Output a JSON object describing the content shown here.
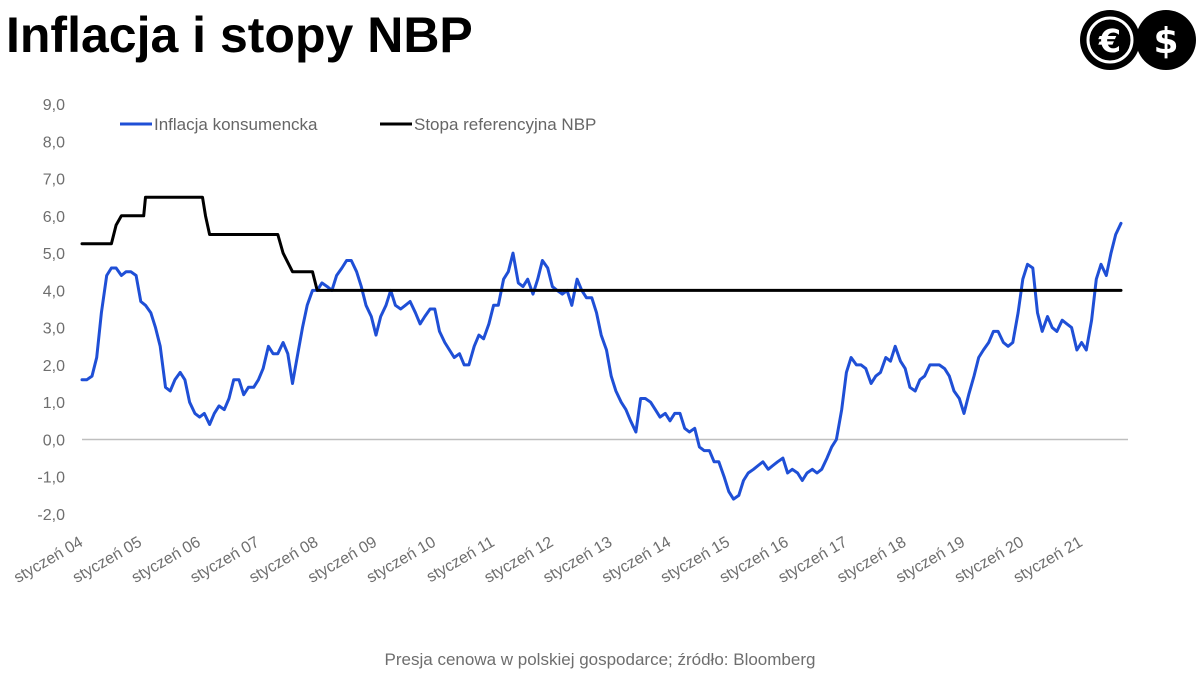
{
  "header": {
    "title": "Inflacja i stopy NBP",
    "logo": {
      "icon": "euro-dollar-logo-icon",
      "glyph_left": "€",
      "glyph_right": "$"
    }
  },
  "footer": {
    "source": "Presja cenowa w polskiej gospodarce; źródło: Bloomberg"
  },
  "colors": {
    "inflation": "#1f4fd6",
    "rate": "#000000",
    "axis": "#bfbfbf",
    "text": "#6e6e6e"
  },
  "chart_data": {
    "type": "line",
    "title": "Inflacja i stopy NBP",
    "xlabel": "",
    "ylabel": "",
    "ylim": [
      -2.0,
      9.0
    ],
    "ytick_labels": [
      "-2,0",
      "-1,0",
      "0,0",
      "1,0",
      "2,0",
      "3,0",
      "4,0",
      "5,0",
      "6,0",
      "7,0",
      "8,0",
      "9,0"
    ],
    "xtick_labels": [
      "styczeń 04",
      "styczeń 05",
      "styczeń 06",
      "styczeń 07",
      "styczeń 08",
      "styczeń 09",
      "styczeń 10",
      "styczeń 11",
      "styczeń 12",
      "styczeń 13",
      "styczeń 14",
      "styczeń 15",
      "styczeń 16",
      "styczeń 17",
      "styczeń 18",
      "styczeń 19",
      "styczeń 20",
      "styczeń 21"
    ],
    "x_unit": "years since January 2004",
    "xlim": [
      0,
      18.0
    ],
    "legend_position": "top",
    "grid": false,
    "series": [
      {
        "name": "Inflacja konsumencka",
        "color": "#1f4fd6",
        "x": [
          0.0,
          0.08,
          0.17,
          0.25,
          0.33,
          0.42,
          0.5,
          0.58,
          0.67,
          0.75,
          0.83,
          0.92,
          1.0,
          1.08,
          1.17,
          1.25,
          1.33,
          1.42,
          1.5,
          1.58,
          1.67,
          1.75,
          1.83,
          1.92,
          2.0,
          2.08,
          2.17,
          2.25,
          2.33,
          2.42,
          2.5,
          2.58,
          2.67,
          2.75,
          2.83,
          2.92,
          3.0,
          3.08,
          3.17,
          3.25,
          3.33,
          3.42,
          3.5,
          3.58,
          3.67,
          3.75,
          3.83,
          3.92,
          4.0,
          4.08,
          4.17,
          4.25,
          4.33,
          4.42,
          4.5,
          4.58,
          4.67,
          4.75,
          4.83,
          4.92,
          5.0,
          5.08,
          5.17,
          5.25,
          5.33,
          5.42,
          5.5,
          5.58,
          5.67,
          5.75,
          5.83,
          5.92,
          6.0,
          6.08,
          6.17,
          6.25,
          6.33,
          6.42,
          6.5,
          6.58,
          6.67,
          6.75,
          6.83,
          6.92,
          7.0,
          7.08,
          7.17,
          7.25,
          7.33,
          7.42,
          7.5,
          7.58,
          7.67,
          7.75,
          7.83,
          7.92,
          8.0,
          8.08,
          8.17,
          8.25,
          8.33,
          8.42,
          8.5,
          8.58,
          8.67,
          8.75,
          8.83,
          8.92,
          9.0,
          9.08,
          9.17,
          9.25,
          9.33,
          9.42,
          9.5,
          9.58,
          9.67,
          9.75,
          9.83,
          9.92,
          10.0,
          10.08,
          10.17,
          10.25,
          10.33,
          10.42,
          10.5,
          10.58,
          10.67,
          10.75,
          10.83,
          10.92,
          11.0,
          11.08,
          11.17,
          11.25,
          11.33,
          11.42,
          11.5,
          11.58,
          11.67,
          11.75,
          11.83,
          11.92,
          12.0,
          12.08,
          12.17,
          12.25,
          12.33,
          12.42,
          12.5,
          12.58,
          12.67,
          12.75,
          12.83,
          12.92,
          13.0,
          13.08,
          13.17,
          13.25,
          13.33,
          13.42,
          13.5,
          13.58,
          13.67,
          13.75,
          13.83,
          13.92,
          14.0,
          14.08,
          14.17,
          14.25,
          14.33,
          14.42,
          14.5,
          14.58,
          14.67,
          14.75,
          14.83,
          14.92,
          15.0,
          15.08,
          15.17,
          15.25,
          15.33,
          15.42,
          15.5,
          15.58,
          15.67,
          15.75,
          15.83,
          15.92,
          16.0,
          16.08,
          16.17,
          16.25,
          16.33,
          16.42,
          16.5,
          16.58,
          16.67,
          16.75,
          16.83,
          16.92,
          17.0,
          17.08,
          17.17,
          17.25,
          17.33,
          17.42,
          17.5,
          17.58,
          17.67
        ],
        "values": [
          1.6,
          1.6,
          1.7,
          2.2,
          3.4,
          4.4,
          4.6,
          4.6,
          4.4,
          4.5,
          4.5,
          4.4,
          3.7,
          3.6,
          3.4,
          3.0,
          2.5,
          1.4,
          1.3,
          1.6,
          1.8,
          1.6,
          1.0,
          0.7,
          0.6,
          0.7,
          0.4,
          0.7,
          0.9,
          0.8,
          1.1,
          1.6,
          1.6,
          1.2,
          1.4,
          1.4,
          1.6,
          1.9,
          2.5,
          2.3,
          2.3,
          2.6,
          2.3,
          1.5,
          2.3,
          3.0,
          3.6,
          4.0,
          4.0,
          4.2,
          4.1,
          4.0,
          4.4,
          4.6,
          4.8,
          4.8,
          4.5,
          4.1,
          3.6,
          3.3,
          2.8,
          3.3,
          3.6,
          4.0,
          3.6,
          3.5,
          3.6,
          3.7,
          3.4,
          3.1,
          3.3,
          3.5,
          3.5,
          2.9,
          2.6,
          2.4,
          2.2,
          2.3,
          2.0,
          2.0,
          2.5,
          2.8,
          2.7,
          3.1,
          3.6,
          3.6,
          4.3,
          4.5,
          5.0,
          4.2,
          4.1,
          4.3,
          3.9,
          4.3,
          4.8,
          4.6,
          4.1,
          4.0,
          3.9,
          4.0,
          3.6,
          4.3,
          4.0,
          3.8,
          3.8,
          3.4,
          2.8,
          2.4,
          1.7,
          1.3,
          1.0,
          0.8,
          0.5,
          0.2,
          1.1,
          1.1,
          1.0,
          0.8,
          0.6,
          0.7,
          0.5,
          0.7,
          0.7,
          0.3,
          0.2,
          0.3,
          -0.2,
          -0.3,
          -0.3,
          -0.6,
          -0.6,
          -1.0,
          -1.4,
          -1.6,
          -1.5,
          -1.1,
          -0.9,
          -0.8,
          -0.7,
          -0.6,
          -0.8,
          -0.7,
          -0.6,
          -0.5,
          -0.9,
          -0.8,
          -0.9,
          -1.1,
          -0.9,
          -0.8,
          -0.9,
          -0.8,
          -0.5,
          -0.2,
          0.0,
          0.8,
          1.8,
          2.2,
          2.0,
          2.0,
          1.9,
          1.5,
          1.7,
          1.8,
          2.2,
          2.1,
          2.5,
          2.1,
          1.9,
          1.4,
          1.3,
          1.6,
          1.7,
          2.0,
          2.0,
          2.0,
          1.9,
          1.7,
          1.3,
          1.1,
          0.7,
          1.2,
          1.7,
          2.2,
          2.4,
          2.6,
          2.9,
          2.9,
          2.6,
          2.5,
          2.6,
          3.4,
          4.3,
          4.7,
          4.6,
          3.4,
          2.9,
          3.3,
          3.0,
          2.9,
          3.2,
          3.1,
          3.0,
          2.4,
          2.6,
          2.4,
          3.2,
          4.3,
          4.7,
          4.4,
          5.0,
          5.5,
          5.8
        ]
      },
      {
        "name": "Stopa referencyjna NBP",
        "color": "#000000",
        "x": [
          0.0,
          0.25,
          0.33,
          0.5,
          0.58,
          0.67,
          1.05,
          1.08,
          1.25,
          1.33,
          1.42,
          1.5,
          1.6,
          1.67,
          2.05,
          2.1,
          2.17,
          3.25,
          3.33,
          3.42,
          3.5,
          3.58,
          3.67,
          3.75,
          3.83,
          3.92,
          4.0,
          4.08,
          4.17,
          4.25,
          4.33,
          4.42,
          4.5,
          4.58,
          4.67,
          4.75,
          4.83,
          4.92,
          5.0,
          5.08,
          5.17,
          5.25,
          5.33,
          5.42,
          5.5,
          7.25,
          7.33,
          7.42,
          7.5,
          7.58,
          7.67,
          7.75,
          7.83,
          8.0,
          8.17,
          8.25,
          8.33,
          8.67,
          8.75,
          8.83,
          8.92,
          9.0,
          9.08,
          9.17,
          9.25,
          9.33,
          9.5,
          10.75,
          10.83,
          10.92,
          11.0,
          11.17,
          11.25,
          11.33,
          16.0,
          16.08,
          16.17,
          16.25,
          16.33,
          17.5,
          17.58,
          17.67
        ],
        "values": [
          5.25,
          5.25,
          5.25,
          5.25,
          5.75,
          6.0,
          6.0,
          6.5,
          6.5,
          6.5,
          6.5,
          6.5,
          6.5,
          6.5,
          6.5,
          6.0,
          5.5,
          5.5,
          5.5,
          5.0,
          4.75,
          4.5,
          4.5,
          4.5,
          4.5,
          4.5,
          4.0,
          4.0,
          4.0,
          4.0,
          4.0,
          4.0,
          4.0,
          4.0,
          4.0,
          4.0,
          4.0,
          4.0,
          4.0,
          4.0,
          4.0,
          4.0,
          4.0,
          4.0,
          4.0,
          4.0,
          4.0,
          4.0,
          4.0,
          4.0,
          4.0,
          4.0,
          4.0,
          4.0,
          4.0,
          4.0,
          4.0,
          4.0,
          4.0,
          4.0,
          4.0,
          4.0,
          4.0,
          4.0,
          4.0,
          4.0,
          4.0,
          4.0,
          4.0,
          4.0,
          4.0,
          4.0,
          4.0,
          4.0,
          4.0,
          4.0,
          4.0,
          4.0,
          4.0,
          4.0,
          4.0,
          4.0
        ]
      }
    ]
  }
}
